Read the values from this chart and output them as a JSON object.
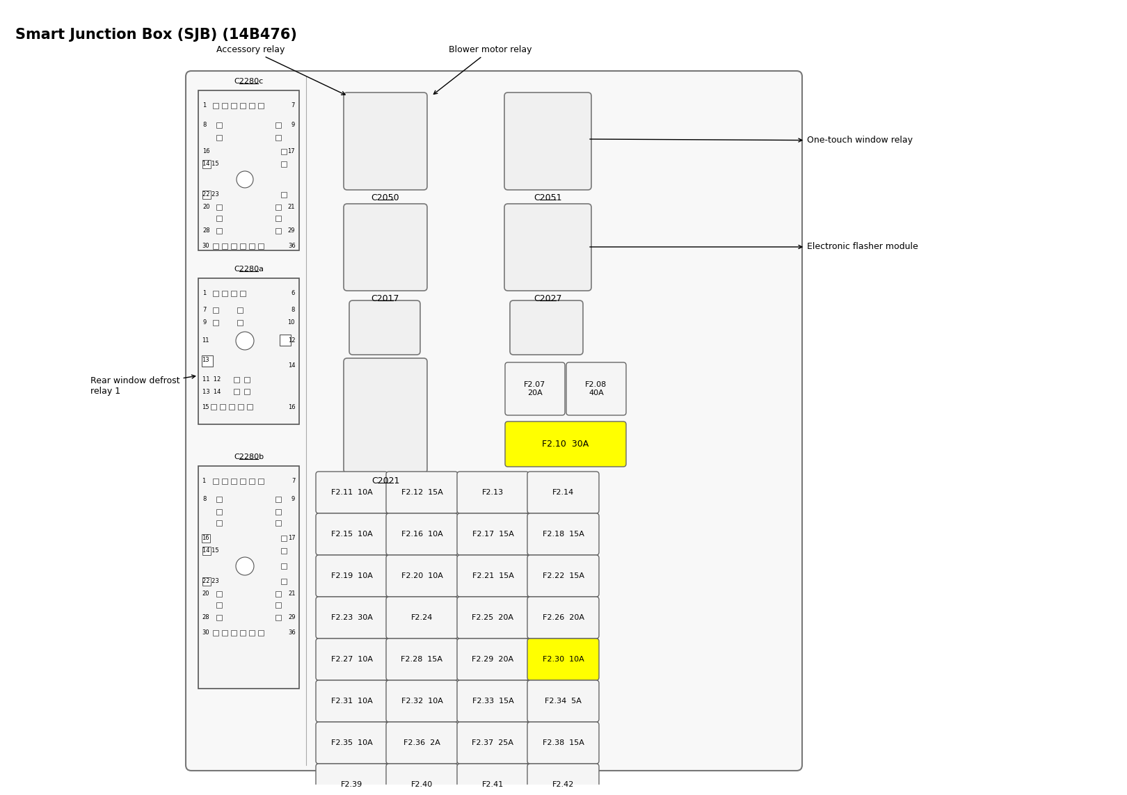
{
  "title": "Smart Junction Box (SJB) (14B476)",
  "bg_color": "#ffffff",
  "yellow_fill": "#ffff00",
  "text_color": "#000000",
  "title_fontsize": 15,
  "fuse_rows": [
    [
      {
        "label": "F2.11  10A",
        "yellow": false
      },
      {
        "label": "F2.12  15A",
        "yellow": false
      },
      {
        "label": "F2.13",
        "yellow": false
      },
      {
        "label": "F2.14",
        "yellow": false
      }
    ],
    [
      {
        "label": "F2.15  10A",
        "yellow": false
      },
      {
        "label": "F2.16  10A",
        "yellow": false
      },
      {
        "label": "F2.17  15A",
        "yellow": false
      },
      {
        "label": "F2.18  15A",
        "yellow": false
      }
    ],
    [
      {
        "label": "F2.19  10A",
        "yellow": false
      },
      {
        "label": "F2.20  10A",
        "yellow": false
      },
      {
        "label": "F2.21  15A",
        "yellow": false
      },
      {
        "label": "F2.22  15A",
        "yellow": false
      }
    ],
    [
      {
        "label": "F2.23  30A",
        "yellow": false
      },
      {
        "label": "F2.24",
        "yellow": false
      },
      {
        "label": "F2.25  20A",
        "yellow": false
      },
      {
        "label": "F2.26  20A",
        "yellow": false
      }
    ],
    [
      {
        "label": "F2.27  10A",
        "yellow": false
      },
      {
        "label": "F2.28  15A",
        "yellow": false
      },
      {
        "label": "F2.29  20A",
        "yellow": false
      },
      {
        "label": "F2.30  10A",
        "yellow": true
      }
    ],
    [
      {
        "label": "F2.31  10A",
        "yellow": false
      },
      {
        "label": "F2.32  10A",
        "yellow": false
      },
      {
        "label": "F2.33  15A",
        "yellow": false
      },
      {
        "label": "F2.34  5A",
        "yellow": false
      }
    ],
    [
      {
        "label": "F2.35  10A",
        "yellow": false
      },
      {
        "label": "F2.36  2A",
        "yellow": false
      },
      {
        "label": "F2.37  25A",
        "yellow": false
      },
      {
        "label": "F2.38  15A",
        "yellow": false
      }
    ],
    [
      {
        "label": "F2.39",
        "yellow": false
      },
      {
        "label": "F2.40",
        "yellow": false
      },
      {
        "label": "F2.41",
        "yellow": false
      },
      {
        "label": "F2.42",
        "yellow": false
      }
    ]
  ]
}
